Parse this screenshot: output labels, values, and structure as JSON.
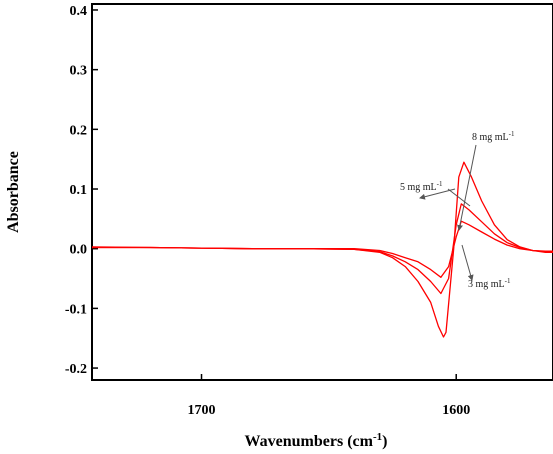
{
  "chart_data": {
    "type": "line",
    "title": "",
    "xlabel": "Wavenumbers (cm",
    "xlabel_sup": "-1",
    "xlabel_close": ")",
    "ylabel": "Absorbance",
    "xlim": [
      1743,
      1562
    ],
    "ylim": [
      -0.22,
      0.41
    ],
    "x_reversed": true,
    "grid": false,
    "legend": "none",
    "line_color": "#ff0000",
    "x_ticks": [
      {
        "value": 1700,
        "label": "1700"
      },
      {
        "value": 1600,
        "label": "1600"
      }
    ],
    "y_ticks": [
      {
        "value": 0.4,
        "label": "0.4"
      },
      {
        "value": 0.3,
        "label": "0.3"
      },
      {
        "value": 0.2,
        "label": "0.2"
      },
      {
        "value": 0.1,
        "label": "0.1"
      },
      {
        "value": 0.0,
        "label": "0.0"
      },
      {
        "value": -0.1,
        "label": "-0.1"
      },
      {
        "value": -0.2,
        "label": "-0.2"
      }
    ],
    "series": [
      {
        "name": "3 mg mL-1",
        "x": [
          1743,
          1720,
          1700,
          1680,
          1660,
          1640,
          1630,
          1625,
          1620,
          1615,
          1610,
          1606,
          1603,
          1600,
          1598,
          1595,
          1590,
          1585,
          1580,
          1575,
          1570,
          1565,
          1562
        ],
        "y": [
          0.002,
          0.002,
          0.001,
          0.0,
          0.0,
          0.0,
          -0.003,
          -0.008,
          -0.015,
          -0.022,
          -0.035,
          -0.048,
          -0.03,
          0.02,
          0.046,
          0.04,
          0.028,
          0.016,
          0.006,
          0.0,
          -0.003,
          -0.004,
          -0.004
        ]
      },
      {
        "name": "5 mg mL-1",
        "x": [
          1743,
          1720,
          1700,
          1680,
          1660,
          1640,
          1630,
          1625,
          1620,
          1615,
          1610,
          1606,
          1603,
          1600,
          1598,
          1595,
          1590,
          1585,
          1580,
          1575,
          1570,
          1565,
          1562
        ],
        "y": [
          0.002,
          0.002,
          0.001,
          0.0,
          0.0,
          -0.001,
          -0.005,
          -0.012,
          -0.022,
          -0.035,
          -0.055,
          -0.075,
          -0.05,
          0.04,
          0.075,
          0.065,
          0.045,
          0.025,
          0.01,
          0.002,
          -0.003,
          -0.005,
          -0.005
        ]
      },
      {
        "name": "8 mg mL-1",
        "x": [
          1743,
          1720,
          1700,
          1680,
          1660,
          1640,
          1630,
          1625,
          1620,
          1615,
          1610,
          1607,
          1605,
          1604,
          1601,
          1599,
          1597,
          1594,
          1590,
          1585,
          1580,
          1575,
          1570,
          1565,
          1562
        ],
        "y": [
          0.003,
          0.002,
          0.001,
          0.0,
          0.0,
          -0.001,
          -0.006,
          -0.015,
          -0.03,
          -0.055,
          -0.09,
          -0.13,
          -0.148,
          -0.14,
          0.0,
          0.12,
          0.145,
          0.12,
          0.08,
          0.04,
          0.015,
          0.003,
          -0.003,
          -0.006,
          -0.006
        ]
      }
    ],
    "annotations": [
      {
        "text": "8 mg mL",
        "sup": "-1"
      },
      {
        "text": "5 mg mL",
        "sup": "-1"
      },
      {
        "text": "3 mg mL",
        "sup": "-1"
      }
    ]
  }
}
